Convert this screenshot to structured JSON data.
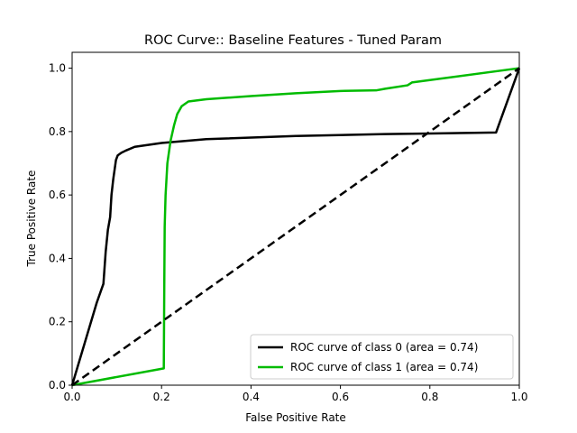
{
  "chart_data": {
    "type": "line",
    "title": "ROC Curve:: Baseline Features - Tuned Param",
    "xlabel": "False Positive Rate",
    "ylabel": "True Positive Rate",
    "xlim": [
      0.0,
      1.0
    ],
    "ylim": [
      0.0,
      1.05
    ],
    "x_ticks": [
      "0.0",
      "0.2",
      "0.4",
      "0.6",
      "0.8",
      "1.0"
    ],
    "y_ticks": [
      "0.0",
      "0.2",
      "0.4",
      "0.6",
      "0.8",
      "1.0"
    ],
    "grid": false,
    "legend_position": "lower-right",
    "series": [
      {
        "name": "ROC curve of class 0 (area = 0.74)",
        "color": "#000000",
        "dash": "solid",
        "x": [
          0.0,
          0.055,
          0.065,
          0.07,
          0.075,
          0.08,
          0.085,
          0.088,
          0.092,
          0.095,
          0.098,
          0.102,
          0.11,
          0.12,
          0.14,
          0.2,
          0.3,
          0.5,
          0.7,
          0.8,
          0.9,
          0.948,
          1.0
        ],
        "y": [
          0.0,
          0.26,
          0.3,
          0.32,
          0.42,
          0.49,
          0.53,
          0.6,
          0.65,
          0.68,
          0.71,
          0.725,
          0.733,
          0.74,
          0.752,
          0.764,
          0.776,
          0.786,
          0.792,
          0.794,
          0.796,
          0.797,
          1.0
        ]
      },
      {
        "name": "ROC curve of class 1 (area = 0.74)",
        "color": "#00bb00",
        "dash": "solid",
        "x": [
          0.0,
          0.205,
          0.206,
          0.207,
          0.209,
          0.213,
          0.22,
          0.228,
          0.235,
          0.245,
          0.26,
          0.3,
          0.4,
          0.5,
          0.6,
          0.68,
          0.7,
          0.75,
          0.76,
          1.0
        ],
        "y": [
          0.0,
          0.053,
          0.3,
          0.5,
          0.6,
          0.7,
          0.77,
          0.82,
          0.855,
          0.88,
          0.895,
          0.902,
          0.912,
          0.921,
          0.928,
          0.93,
          0.935,
          0.946,
          0.955,
          1.0
        ]
      },
      {
        "name": "",
        "color": "#000000",
        "dash": "dashed",
        "x": [
          0.0,
          1.0
        ],
        "y": [
          0.0,
          1.0
        ]
      }
    ]
  }
}
